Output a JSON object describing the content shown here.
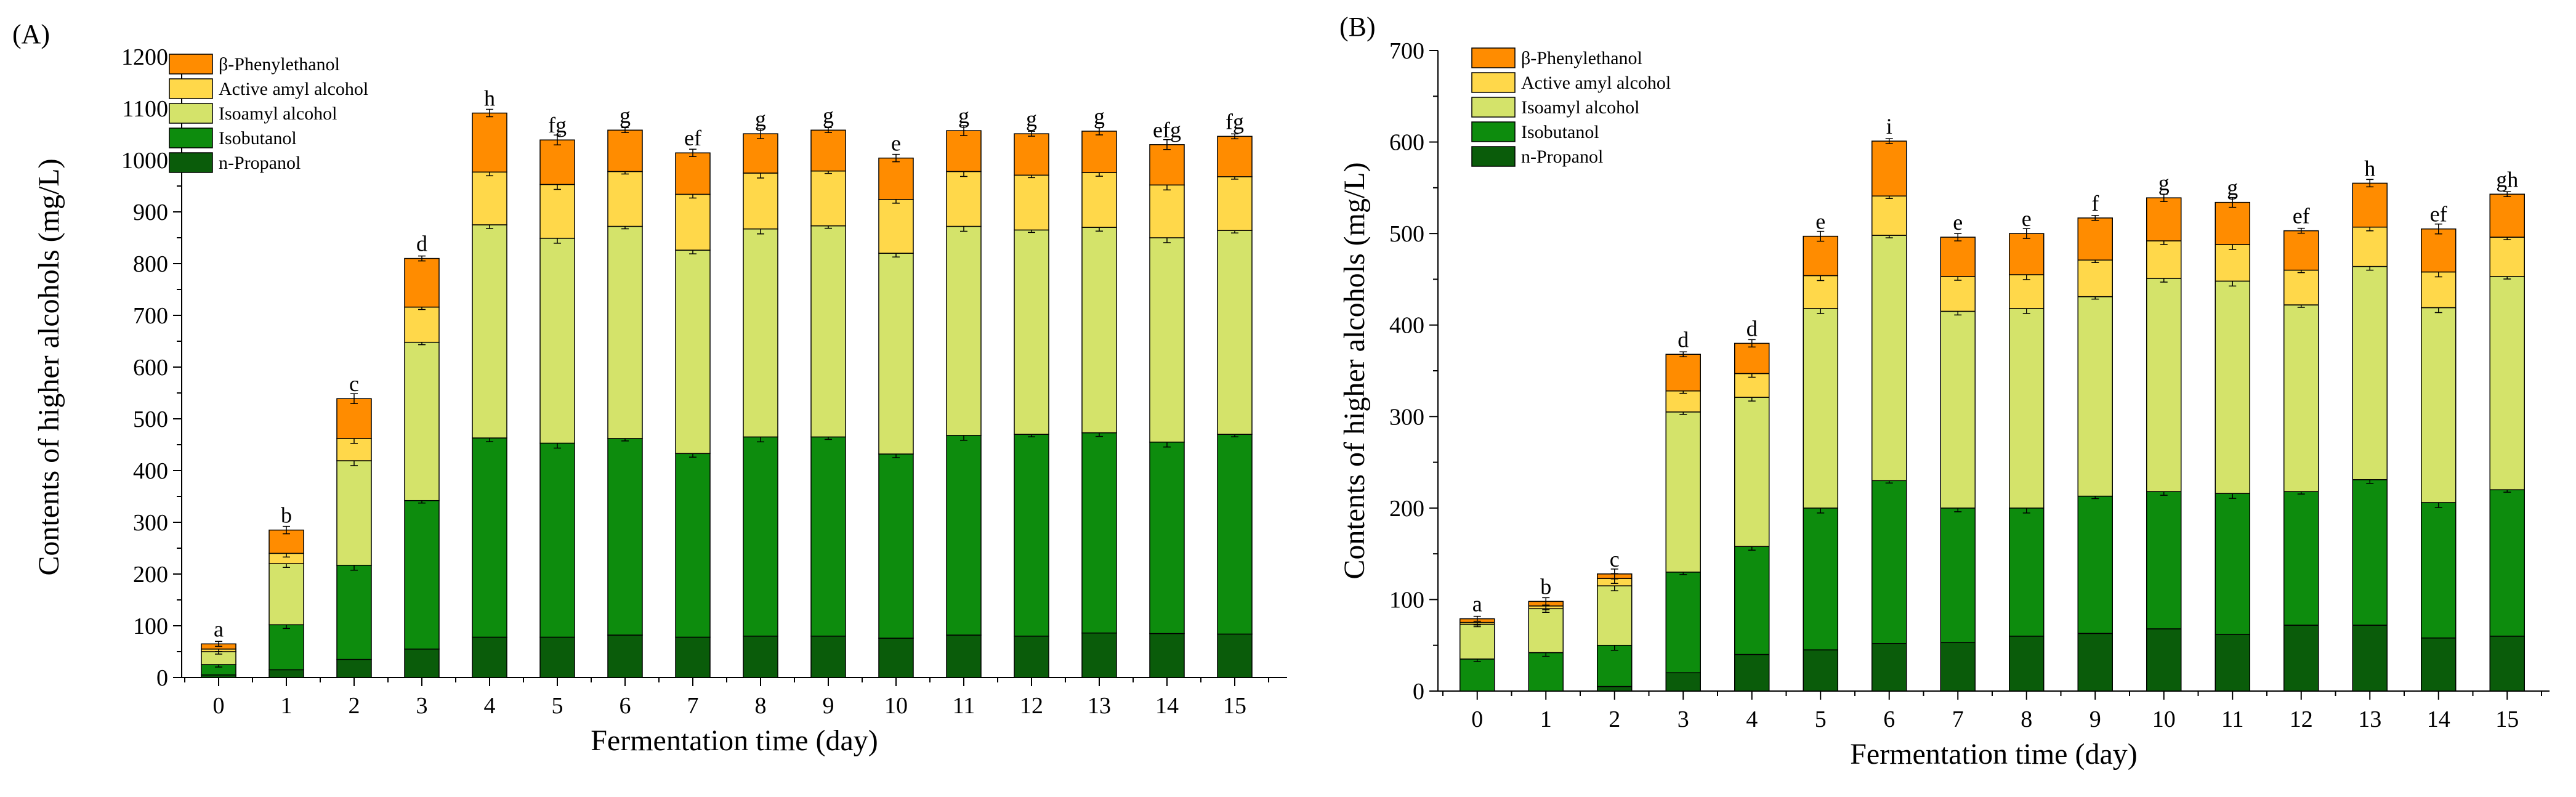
{
  "chart_data": [
    {
      "type": "bar",
      "stacked": true,
      "panel_label": "(A)",
      "ylabel": "Contents of higher alcohols (mg/L)",
      "xlabel": "Fermentation time (day)",
      "ylim": [
        0,
        1200
      ],
      "yticks": [
        0,
        100,
        200,
        300,
        400,
        500,
        600,
        700,
        800,
        900,
        1000,
        1100,
        1200
      ],
      "categories": [
        "0",
        "1",
        "2",
        "3",
        "4",
        "5",
        "6",
        "7",
        "8",
        "9",
        "10",
        "11",
        "12",
        "13",
        "14",
        "15"
      ],
      "legend_position": "top-left",
      "series": [
        {
          "name": "n-Propanol",
          "color": "#0a5c0a",
          "values": [
            5,
            15,
            35,
            55,
            78,
            78,
            82,
            78,
            80,
            80,
            76,
            82,
            80,
            86,
            85,
            84
          ]
        },
        {
          "name": "Isobutanol",
          "color": "#0d8c0d",
          "values": [
            20,
            87,
            182,
            287,
            385,
            375,
            380,
            355,
            385,
            385,
            356,
            386,
            390,
            387,
            370,
            386
          ]
        },
        {
          "name": "Isoamyl alcohol",
          "color": "#d4e36a",
          "values": [
            25,
            118,
            202,
            306,
            412,
            396,
            410,
            393,
            402,
            408,
            388,
            404,
            395,
            397,
            395,
            394
          ]
        },
        {
          "name": "Active amyl alcohol",
          "color": "#ffd84a",
          "values": [
            5,
            20,
            43,
            68,
            102,
            104,
            106,
            108,
            108,
            106,
            104,
            106,
            106,
            106,
            102,
            104
          ]
        },
        {
          "name": "β-Phenylethanol",
          "color": "#ff8c00",
          "values": [
            10,
            45,
            77,
            94,
            114,
            86,
            80,
            80,
            76,
            79,
            80,
            79,
            80,
            80,
            78,
            78
          ]
        }
      ],
      "significance_letters": [
        "a",
        "b",
        "c",
        "d",
        "h",
        "fg",
        "g",
        "ef",
        "g",
        "g",
        "e",
        "g",
        "g",
        "g",
        "efg",
        "fg"
      ]
    },
    {
      "type": "bar",
      "stacked": true,
      "panel_label": "(B)",
      "ylabel": "Contents of higher alcohols (mg/L)",
      "xlabel": "Fermentation time (day)",
      "ylim": [
        0,
        700
      ],
      "yticks": [
        0,
        100,
        200,
        300,
        400,
        500,
        600,
        700
      ],
      "categories": [
        "0",
        "1",
        "2",
        "3",
        "4",
        "5",
        "6",
        "7",
        "8",
        "9",
        "10",
        "11",
        "12",
        "13",
        "14",
        "15"
      ],
      "legend_position": "top-left",
      "series": [
        {
          "name": "n-Propanol",
          "color": "#0a5c0a",
          "values": [
            0,
            0,
            5,
            20,
            40,
            45,
            52,
            53,
            60,
            63,
            68,
            62,
            72,
            72,
            58,
            60
          ]
        },
        {
          "name": "Isobutanol",
          "color": "#0d8c0d",
          "values": [
            35,
            42,
            45,
            110,
            118,
            155,
            178,
            147,
            140,
            150,
            150,
            154,
            146,
            159,
            148,
            160
          ]
        },
        {
          "name": "Isoamyl alcohol",
          "color": "#d4e36a",
          "values": [
            38,
            48,
            65,
            175,
            163,
            218,
            268,
            215,
            218,
            218,
            233,
            232,
            204,
            233,
            213,
            233
          ]
        },
        {
          "name": "Active amyl alcohol",
          "color": "#ffd84a",
          "values": [
            2,
            3,
            8,
            23,
            26,
            36,
            43,
            38,
            37,
            40,
            41,
            40,
            38,
            43,
            39,
            43
          ]
        },
        {
          "name": "β-Phenylethanol",
          "color": "#ff8c00",
          "values": [
            4,
            5,
            5,
            40,
            33,
            43,
            60,
            43,
            45,
            46,
            47,
            46,
            43,
            48,
            47,
            47
          ]
        }
      ],
      "significance_letters": [
        "a",
        "b",
        "c",
        "d",
        "d",
        "e",
        "i",
        "e",
        "e",
        "f",
        "g",
        "g",
        "ef",
        "h",
        "ef",
        "gh"
      ]
    }
  ]
}
